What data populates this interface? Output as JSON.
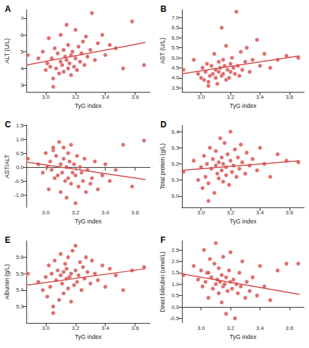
{
  "chart_data": [
    {
      "type": "scatter",
      "title": "A",
      "x_label": "TyG index",
      "y_label": "ALT (U/L)",
      "color": "#d64a4a",
      "grid": false,
      "x": [
        2.88,
        2.95,
        2.98,
        3.0,
        3.01,
        3.02,
        3.03,
        3.04,
        3.05,
        3.06,
        3.07,
        3.08,
        3.09,
        3.1,
        3.1,
        3.11,
        3.12,
        3.12,
        3.13,
        3.14,
        3.14,
        3.15,
        3.15,
        3.16,
        3.17,
        3.17,
        3.18,
        3.19,
        3.2,
        3.2,
        3.21,
        3.22,
        3.23,
        3.24,
        3.25,
        3.26,
        3.27,
        3.28,
        3.3,
        3.31,
        3.33,
        3.35,
        3.38,
        3.4,
        3.43,
        3.47,
        3.52,
        3.58,
        3.66,
        3.05
      ],
      "values": [
        4.8,
        4.6,
        5.0,
        3.9,
        4.3,
        5.8,
        4.1,
        4.6,
        3.4,
        5.2,
        4.0,
        4.9,
        3.7,
        4.4,
        6.0,
        4.2,
        5.1,
        3.8,
        4.7,
        4.5,
        6.6,
        4.0,
        5.4,
        4.3,
        3.6,
        4.8,
        5.0,
        4.1,
        4.6,
        6.3,
        3.9,
        5.3,
        4.4,
        4.9,
        5.6,
        4.2,
        5.9,
        4.7,
        5.1,
        7.3,
        4.5,
        5.5,
        6.0,
        4.8,
        5.4,
        5.2,
        4.0,
        6.8,
        4.2,
        2.9
      ],
      "fit": {
        "x": [
          2.87,
          3.67
        ],
        "values": [
          4.2,
          5.55
        ]
      },
      "xlim": [
        2.87,
        3.7
      ],
      "xticks": [
        {
          "value": 3,
          "label": "3.0"
        },
        3.2,
        3.4,
        3.6
      ],
      "ylim": [
        2.6,
        7.5
      ],
      "yticks": [
        3,
        4,
        5,
        6,
        7
      ]
    },
    {
      "type": "scatter",
      "title": "B",
      "x_label": "TyG index",
      "y_label": "AST (U/L)",
      "color": "#d64a4a",
      "grid": false,
      "x": [
        2.88,
        2.95,
        2.98,
        3.0,
        3.01,
        3.02,
        3.03,
        3.04,
        3.05,
        3.06,
        3.07,
        3.08,
        3.09,
        3.1,
        3.1,
        3.11,
        3.12,
        3.12,
        3.13,
        3.14,
        3.14,
        3.15,
        3.15,
        3.16,
        3.17,
        3.17,
        3.18,
        3.19,
        3.2,
        3.2,
        3.21,
        3.22,
        3.23,
        3.24,
        3.25,
        3.26,
        3.27,
        3.28,
        3.3,
        3.31,
        3.33,
        3.35,
        3.38,
        3.4,
        3.43,
        3.47,
        3.52,
        3.58,
        3.66,
        3.05
      ],
      "values": [
        4.4,
        4.9,
        4.2,
        4.0,
        4.5,
        3.9,
        4.3,
        4.7,
        3.8,
        4.1,
        4.6,
        4.2,
        5.2,
        4.0,
        4.4,
        3.7,
        4.8,
        4.3,
        4.5,
        6.5,
        4.1,
        4.9,
        4.2,
        4.6,
        3.9,
        5.6,
        4.4,
        4.0,
        4.7,
        4.3,
        5.0,
        4.5,
        4.2,
        7.3,
        4.6,
        4.1,
        5.3,
        4.4,
        4.8,
        5.5,
        4.3,
        4.9,
        5.9,
        4.6,
        5.2,
        4.5,
        4.9,
        5.1,
        5.0,
        3.6
      ],
      "fit": {
        "x": [
          2.87,
          3.67
        ],
        "values": [
          4.2,
          5.1
        ]
      },
      "xlim": [
        2.87,
        3.7
      ],
      "xticks": [
        {
          "value": 3,
          "label": "3.0"
        },
        3.2,
        3.4,
        3.6
      ],
      "ylim": [
        3.3,
        7.4
      ],
      "yticks": [
        3.5,
        {
          "value": 4,
          "label": "4.0"
        },
        4.5,
        {
          "value": 5,
          "label": "5.0"
        },
        5.5,
        {
          "value": 6,
          "label": "6.0"
        },
        6.5,
        {
          "value": 7,
          "label": "7.0"
        }
      ]
    },
    {
      "type": "scatter",
      "title": "C",
      "x_label": "TyG index",
      "y_label": "AST/ALT",
      "color": "#d64a4a",
      "grid": false,
      "x": [
        2.88,
        2.95,
        2.98,
        3.0,
        3.01,
        3.02,
        3.03,
        3.04,
        3.05,
        3.06,
        3.07,
        3.08,
        3.09,
        3.1,
        3.1,
        3.11,
        3.12,
        3.12,
        3.13,
        3.14,
        3.14,
        3.15,
        3.15,
        3.16,
        3.17,
        3.17,
        3.18,
        3.19,
        3.2,
        3.2,
        3.21,
        3.22,
        3.23,
        3.24,
        3.25,
        3.26,
        3.27,
        3.28,
        3.3,
        3.31,
        3.33,
        3.35,
        3.38,
        3.4,
        3.43,
        3.47,
        3.52,
        3.58,
        3.66,
        3.05
      ],
      "values": [
        0.3,
        0.1,
        -0.2,
        0.5,
        0.0,
        -0.8,
        0.2,
        -0.1,
        0.6,
        -0.4,
        0.4,
        -0.3,
        0.9,
        0.1,
        -0.9,
        -0.2,
        0.3,
        0.7,
        -0.5,
        0.0,
        -1.1,
        0.5,
        -0.4,
        0.2,
        0.8,
        -0.6,
        -0.2,
        0.1,
        -0.3,
        -1.3,
        0.4,
        -0.7,
        0.0,
        -0.2,
        -0.5,
        0.3,
        -0.9,
        -0.1,
        -0.6,
        -0.4,
        0.2,
        -0.8,
        -0.3,
        0.1,
        -0.5,
        -0.1,
        0.8,
        -0.7,
        0.95,
        0.7
      ],
      "fit": {
        "x": [
          2.87,
          3.67
        ],
        "values": [
          0.18,
          -0.45
        ]
      },
      "xlim": [
        2.87,
        3.7
      ],
      "xticks": [
        {
          "value": 3,
          "label": "3.0"
        },
        3.2,
        3.4,
        3.6
      ],
      "ylim": [
        -1.45,
        1.5
      ],
      "yticks": [
        {
          "value": -1,
          "label": "-1.0"
        },
        -0.5,
        {
          "value": 0,
          "label": "0.0"
        },
        0.5,
        {
          "value": 1,
          "label": "1.0"
        },
        1.5
      ]
    },
    {
      "type": "scatter",
      "title": "D",
      "x_label": "TyG index",
      "y_label": "Total protein (g/L)",
      "color": "#d64a4a",
      "grid": false,
      "x": [
        2.88,
        2.95,
        2.98,
        3.0,
        3.01,
        3.02,
        3.03,
        3.04,
        3.05,
        3.06,
        3.07,
        3.08,
        3.09,
        3.1,
        3.1,
        3.11,
        3.12,
        3.12,
        3.13,
        3.14,
        3.14,
        3.15,
        3.15,
        3.16,
        3.17,
        3.17,
        3.18,
        3.19,
        3.2,
        3.2,
        3.21,
        3.22,
        3.23,
        3.24,
        3.25,
        3.26,
        3.27,
        3.28,
        3.3,
        3.31,
        3.33,
        3.35,
        3.38,
        3.4,
        3.43,
        3.47,
        3.52,
        3.58,
        3.66,
        3.05
      ],
      "values": [
        6.15,
        6.22,
        6.1,
        6.18,
        6.05,
        6.25,
        6.12,
        6.2,
        6.08,
        6.3,
        6.17,
        6.23,
        6.02,
        6.19,
        6.28,
        6.14,
        6.21,
        6.11,
        6.36,
        6.16,
        6.24,
        6.09,
        6.2,
        6.33,
        6.13,
        6.18,
        6.26,
        6.07,
        6.22,
        6.4,
        6.15,
        6.19,
        6.29,
        6.12,
        6.24,
        6.17,
        6.32,
        6.21,
        6.14,
        6.27,
        6.19,
        6.23,
        6.16,
        6.3,
        6.2,
        6.12,
        6.26,
        6.22,
        6.21,
        5.97
      ],
      "fit": {
        "x": [
          2.87,
          3.67
        ],
        "values": [
          6.16,
          6.22
        ]
      },
      "xlim": [
        2.87,
        3.7
      ],
      "xticks": [
        {
          "value": 3,
          "label": "3.0"
        },
        3.2,
        3.4,
        3.6
      ],
      "ylim": [
        5.93,
        6.44
      ],
      "yticks": [
        {
          "value": 6,
          "label": "6.0"
        },
        6.1,
        6.2,
        6.3,
        6.4
      ]
    },
    {
      "type": "scatter",
      "title": "E",
      "x_label": "TyG index",
      "y_label": "Albumin (g/L)",
      "color": "#d64a4a",
      "grid": false,
      "x": [
        2.88,
        2.95,
        2.98,
        3.0,
        3.01,
        3.02,
        3.03,
        3.04,
        3.05,
        3.06,
        3.07,
        3.08,
        3.09,
        3.1,
        3.1,
        3.11,
        3.12,
        3.12,
        3.13,
        3.14,
        3.14,
        3.15,
        3.15,
        3.16,
        3.17,
        3.17,
        3.18,
        3.19,
        3.2,
        3.2,
        3.21,
        3.22,
        3.23,
        3.24,
        3.25,
        3.26,
        3.27,
        3.28,
        3.3,
        3.31,
        3.33,
        3.35,
        3.38,
        3.4,
        3.43,
        3.47,
        3.52,
        3.58,
        3.66,
        3.05
      ],
      "values": [
        5.5,
        5.45,
        5.4,
        5.48,
        5.36,
        5.55,
        5.42,
        5.5,
        5.3,
        5.58,
        5.46,
        5.52,
        5.34,
        5.49,
        5.62,
        5.44,
        5.51,
        5.38,
        5.56,
        5.47,
        5.53,
        5.41,
        5.6,
        5.48,
        5.33,
        5.5,
        5.64,
        5.43,
        5.52,
        5.67,
        5.45,
        5.49,
        5.57,
        5.4,
        5.54,
        5.47,
        5.6,
        5.51,
        5.44,
        5.58,
        5.5,
        5.46,
        5.55,
        5.42,
        5.53,
        5.49,
        5.4,
        5.52,
        5.54,
        5.26
      ],
      "fit": {
        "x": [
          2.87,
          3.67
        ],
        "values": [
          5.43,
          5.53
        ]
      },
      "xlim": [
        2.87,
        3.7
      ],
      "xticks": [
        {
          "value": 3,
          "label": "3.0"
        },
        3.2,
        3.4,
        3.6
      ],
      "ylim": [
        5.2,
        5.7
      ],
      "yticks": [
        5.3,
        5.4,
        5.5,
        5.6
      ]
    },
    {
      "type": "scatter",
      "title": "F",
      "x_label": "TyG index",
      "y_label": "Direct bilirubin (umol/L)",
      "color": "#d64a4a",
      "grid": false,
      "x": [
        2.88,
        2.95,
        2.98,
        3.0,
        3.01,
        3.02,
        3.03,
        3.04,
        3.05,
        3.06,
        3.07,
        3.08,
        3.09,
        3.1,
        3.1,
        3.11,
        3.12,
        3.12,
        3.13,
        3.14,
        3.14,
        3.15,
        3.15,
        3.16,
        3.17,
        3.17,
        3.18,
        3.19,
        3.2,
        3.2,
        3.21,
        3.22,
        3.23,
        3.24,
        3.25,
        3.26,
        3.27,
        3.28,
        3.3,
        3.31,
        3.33,
        3.35,
        3.38,
        3.4,
        3.43,
        3.47,
        3.52,
        3.58,
        3.66,
        3.05
      ],
      "values": [
        1.4,
        1.8,
        1.2,
        1.6,
        0.9,
        2.5,
        1.1,
        1.5,
        0.4,
        2.1,
        1.3,
        0.8,
        1.9,
        1.0,
        2.8,
        1.2,
        0.6,
        1.7,
        1.1,
        0.2,
        1.4,
        0.9,
        2.2,
        1.0,
        -0.3,
        1.3,
        0.7,
        1.6,
        1.1,
        2.4,
        0.8,
        1.2,
        -0.5,
        1.0,
        0.6,
        1.5,
        0.9,
        2.0,
        0.4,
        1.1,
        0.7,
        1.3,
        0.5,
        1.8,
        0.9,
        0.3,
        1.6,
        1.9,
        1.9,
        1.5
      ],
      "fit": {
        "x": [
          2.87,
          3.67
        ],
        "values": [
          1.45,
          0.55
        ]
      },
      "xlim": [
        2.87,
        3.7
      ],
      "xticks": [
        {
          "value": 3,
          "label": "3.0"
        },
        3.2,
        3.4,
        3.6
      ],
      "ylim": [
        -0.7,
        2.9
      ],
      "yticks": [
        -0.5,
        {
          "value": 0,
          "label": "0.0"
        },
        0.5,
        {
          "value": 1,
          "label": "1.0"
        },
        1.5,
        {
          "value": 2,
          "label": "2.0"
        },
        2.5
      ]
    }
  ]
}
